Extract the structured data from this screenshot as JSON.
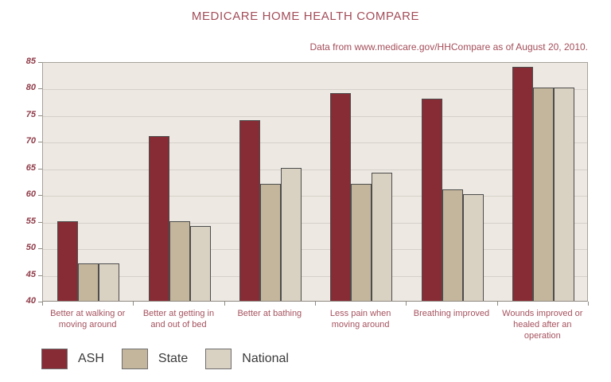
{
  "title": "MEDICARE HOME HEALTH COMPARE",
  "subtitle": "Data from www.medicare.gov/HHCompare as of August 20, 2010.",
  "chart_data": {
    "type": "bar",
    "categories": [
      "Better at walking or moving around",
      "Better at getting in and out of bed",
      "Better at bathing",
      "Less pain when moving around",
      "Breathing improved",
      "Wounds improved or healed after an operation"
    ],
    "series": [
      {
        "name": "ASH",
        "color": "#872B35",
        "values": [
          55,
          71,
          74,
          79,
          78,
          84
        ]
      },
      {
        "name": "State",
        "color": "#C3B69C",
        "values": [
          47,
          55,
          62,
          62,
          61,
          80
        ]
      },
      {
        "name": "National",
        "color": "#D9D1C2",
        "values": [
          47,
          54,
          65,
          64,
          60,
          80
        ]
      }
    ],
    "ylim": [
      40,
      85
    ],
    "yticks": [
      40,
      45,
      50,
      55,
      60,
      65,
      70,
      75,
      80,
      85
    ],
    "grid": true,
    "legend_position": "bottom-left",
    "xlabel": "",
    "ylabel": ""
  },
  "colors": {
    "title_text": "#A34D59",
    "subtitle_text": "#A34D59",
    "axis_tick_label": "#8F3B48",
    "category_label": "#A5525E",
    "legend_text": "#3B3B3B",
    "plot_background": "#EDE8E2",
    "gridline": "#D5D0C8",
    "plot_border": "#A6A19A",
    "axis_line": "#8F8A82",
    "bar_border": "#4D4D4D"
  }
}
